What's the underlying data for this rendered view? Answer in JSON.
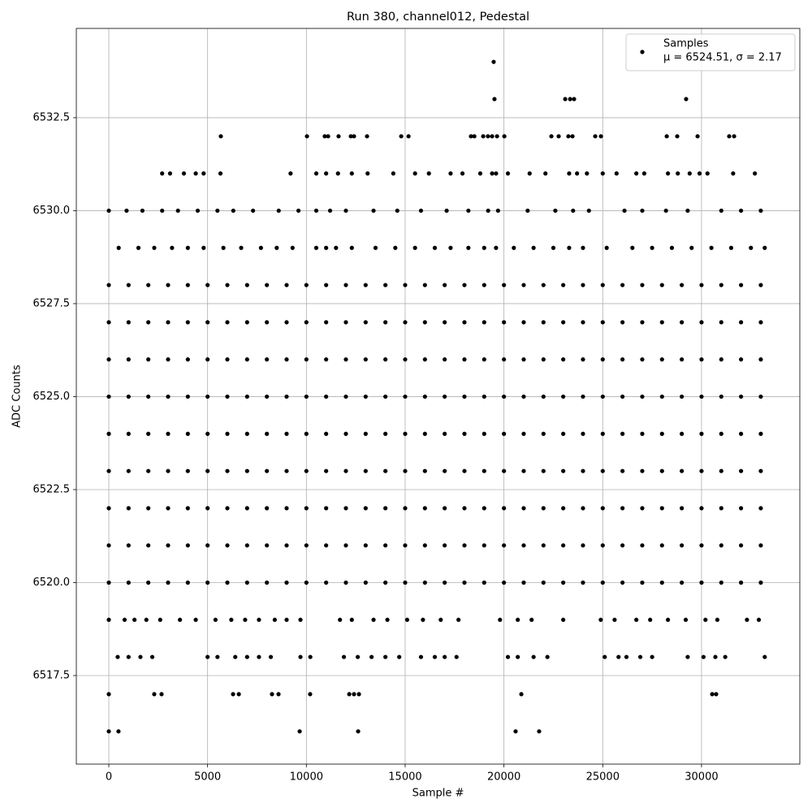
{
  "chart_data": {
    "type": "scatter",
    "title": "Run 380, channel012, Pedestal",
    "x_label": "Sample #",
    "y_label": "ADC Counts",
    "xlim": [
      -1644,
      34975
    ],
    "ylim": [
      6515.12,
      6534.9
    ],
    "xticks": [
      0,
      5000,
      10000,
      15000,
      20000,
      25000,
      30000
    ],
    "yticks": [
      6517.5,
      {
        "value": 6520,
        "label": "6520.0"
      },
      6522.5,
      {
        "value": 6525,
        "label": "6525.0"
      },
      6527.5,
      {
        "value": 6530,
        "label": "6530.0"
      },
      6532.5
    ],
    "grid": true,
    "legend_loc": "upper right",
    "legend_note": "μ = 6524.51, σ = 2.17",
    "series": [
      {
        "name": "Samples",
        "color": "#000000",
        "x": [
          0,
          1000,
          2000,
          3000,
          4000,
          5000,
          6000,
          7000,
          8000,
          9000,
          10000,
          11000,
          12000,
          13000,
          14000,
          15000,
          16000,
          17000,
          18000,
          19000,
          20000,
          21000,
          22000,
          23000,
          24000,
          25000,
          26000,
          27000,
          28000,
          29000,
          30000,
          31000,
          32000,
          33000,
          0,
          1000,
          2000,
          3000,
          4000,
          5000,
          6000,
          7000,
          8000,
          9000,
          10000,
          11000,
          12000,
          13000,
          14000,
          15000,
          16000,
          17000,
          18000,
          19000,
          20000,
          21000,
          22000,
          23000,
          24000,
          25000,
          26000,
          27000,
          28000,
          29000,
          30000,
          31000,
          32000,
          33000,
          0,
          1000,
          2000,
          3000,
          4000,
          5000,
          6000,
          7000,
          8000,
          9000,
          10000,
          11000,
          12000,
          13000,
          14000,
          15000,
          16000,
          17000,
          18000,
          19000,
          20000,
          21000,
          22000,
          23000,
          24000,
          25000,
          26000,
          27000,
          28000,
          29000,
          30000,
          31000,
          32000,
          33000,
          0,
          1000,
          2000,
          3000,
          4000,
          5000,
          6000,
          7000,
          8000,
          9000,
          10000,
          11000,
          12000,
          13000,
          14000,
          15000,
          16000,
          17000,
          18000,
          19000,
          20000,
          21000,
          22000,
          23000,
          24000,
          25000,
          26000,
          27000,
          28000,
          29000,
          30000,
          31000,
          32000,
          33000,
          0,
          1000,
          2000,
          3000,
          4000,
          5000,
          6000,
          7000,
          8000,
          9000,
          10000,
          11000,
          12000,
          13000,
          14000,
          15000,
          16000,
          17000,
          18000,
          19000,
          20000,
          21000,
          22000,
          23000,
          24000,
          25000,
          26000,
          27000,
          28000,
          29000,
          30000,
          31000,
          32000,
          33000,
          0,
          1000,
          2000,
          3000,
          4000,
          5000,
          6000,
          7000,
          8000,
          9000,
          10000,
          11000,
          12000,
          13000,
          14000,
          15000,
          16000,
          17000,
          18000,
          19000,
          20000,
          21000,
          22000,
          23000,
          24000,
          25000,
          26000,
          27000,
          28000,
          29000,
          30000,
          31000,
          32000,
          33000,
          0,
          1000,
          2000,
          3000,
          4000,
          5000,
          6000,
          7000,
          8000,
          9000,
          10000,
          11000,
          12000,
          13000,
          14000,
          15000,
          16000,
          17000,
          18000,
          19000,
          20000,
          21000,
          22000,
          23000,
          24000,
          25000,
          26000,
          27000,
          28000,
          29000,
          30000,
          31000,
          32000,
          33000,
          0,
          1000,
          2000,
          3000,
          4000,
          5000,
          6000,
          7000,
          8000,
          9000,
          10000,
          11000,
          12000,
          13000,
          14000,
          15000,
          16000,
          17000,
          18000,
          19000,
          20000,
          21000,
          22000,
          23000,
          24000,
          25000,
          26000,
          27000,
          28000,
          29000,
          30000,
          31000,
          32000,
          33000,
          0,
          1000,
          2000,
          3000,
          4000,
          5000,
          6000,
          7000,
          8000,
          9000,
          10000,
          11000,
          12000,
          13000,
          14000,
          15000,
          16000,
          17000,
          18000,
          19000,
          20000,
          21000,
          22000,
          23000,
          24000,
          25000,
          26000,
          27000,
          28000,
          29000,
          30000,
          31000,
          32000,
          33000,
          500,
          1500,
          2300,
          3200,
          4000,
          4800,
          5800,
          6700,
          7700,
          8500,
          9300,
          10500,
          11000,
          11500,
          12300,
          13500,
          14500,
          15500,
          16500,
          17300,
          18200,
          19000,
          19600,
          20500,
          21500,
          22500,
          23300,
          24000,
          25200,
          26500,
          27500,
          28500,
          29500,
          30500,
          31500,
          32500,
          33200,
          0,
          900,
          1700,
          2700,
          3500,
          4500,
          5500,
          6300,
          7300,
          8600,
          9600,
          10500,
          11200,
          12000,
          13400,
          14600,
          15800,
          17100,
          18200,
          19200,
          19700,
          21200,
          22600,
          23500,
          24300,
          26100,
          27000,
          28200,
          29300,
          31000,
          32000,
          33000,
          2700,
          3100,
          3800,
          4400,
          4800,
          5650,
          9200,
          10500,
          11000,
          11600,
          12300,
          13100,
          14400,
          15500,
          16200,
          17300,
          17900,
          18800,
          19400,
          19600,
          20200,
          21300,
          22100,
          23300,
          23700,
          24200,
          25000,
          25700,
          26700,
          27100,
          28300,
          28800,
          29400,
          29900,
          30300,
          31600,
          32700,
          450,
          1000,
          1600,
          2200,
          5000,
          5500,
          6400,
          7000,
          7600,
          8200,
          9700,
          10200,
          11900,
          12600,
          13300,
          14000,
          14700,
          15800,
          16500,
          17000,
          17600,
          20200,
          20700,
          21500,
          22200,
          25100,
          25800,
          26200,
          26900,
          27500,
          29300,
          30100,
          30700,
          31200,
          33200,
          0,
          800,
          1300,
          1900,
          2600,
          3600,
          4400,
          5400,
          6200,
          6900,
          7600,
          8400,
          9000,
          9700,
          11700,
          12300,
          13400,
          14100,
          15100,
          15900,
          16800,
          17700,
          19800,
          20700,
          21400,
          23000,
          24900,
          25600,
          26700,
          27400,
          28300,
          29200,
          30200,
          30800,
          32300,
          32900,
          5670,
          10030,
          10930,
          11100,
          11630,
          12250,
          12410,
          13070,
          14800,
          15170,
          18330,
          18500,
          18950,
          19190,
          19400,
          19650,
          20020,
          22400,
          22770,
          23260,
          23470,
          24620,
          24910,
          28240,
          28770,
          29800,
          31400,
          31650,
          19520,
          23100,
          23350,
          23550,
          29220,
          19480,
          0,
          2300,
          2670,
          6290,
          6580,
          8260,
          8590,
          10190,
          12170,
          12410,
          12660,
          20880,
          30540,
          30740,
          0,
          490,
          9660,
          12620,
          20590,
          21780
        ],
        "values": [
          6528,
          6528,
          6528,
          6528,
          6528,
          6528,
          6528,
          6528,
          6528,
          6528,
          6528,
          6528,
          6528,
          6528,
          6528,
          6528,
          6528,
          6528,
          6528,
          6528,
          6528,
          6528,
          6528,
          6528,
          6528,
          6528,
          6528,
          6528,
          6528,
          6528,
          6528,
          6528,
          6528,
          6528,
          6527,
          6527,
          6527,
          6527,
          6527,
          6527,
          6527,
          6527,
          6527,
          6527,
          6527,
          6527,
          6527,
          6527,
          6527,
          6527,
          6527,
          6527,
          6527,
          6527,
          6527,
          6527,
          6527,
          6527,
          6527,
          6527,
          6527,
          6527,
          6527,
          6527,
          6527,
          6527,
          6527,
          6527,
          6526,
          6526,
          6526,
          6526,
          6526,
          6526,
          6526,
          6526,
          6526,
          6526,
          6526,
          6526,
          6526,
          6526,
          6526,
          6526,
          6526,
          6526,
          6526,
          6526,
          6526,
          6526,
          6526,
          6526,
          6526,
          6526,
          6526,
          6526,
          6526,
          6526,
          6526,
          6526,
          6526,
          6526,
          6525,
          6525,
          6525,
          6525,
          6525,
          6525,
          6525,
          6525,
          6525,
          6525,
          6525,
          6525,
          6525,
          6525,
          6525,
          6525,
          6525,
          6525,
          6525,
          6525,
          6525,
          6525,
          6525,
          6525,
          6525,
          6525,
          6525,
          6525,
          6525,
          6525,
          6525,
          6525,
          6525,
          6525,
          6524,
          6524,
          6524,
          6524,
          6524,
          6524,
          6524,
          6524,
          6524,
          6524,
          6524,
          6524,
          6524,
          6524,
          6524,
          6524,
          6524,
          6524,
          6524,
          6524,
          6524,
          6524,
          6524,
          6524,
          6524,
          6524,
          6524,
          6524,
          6524,
          6524,
          6524,
          6524,
          6524,
          6524,
          6523,
          6523,
          6523,
          6523,
          6523,
          6523,
          6523,
          6523,
          6523,
          6523,
          6523,
          6523,
          6523,
          6523,
          6523,
          6523,
          6523,
          6523,
          6523,
          6523,
          6523,
          6523,
          6523,
          6523,
          6523,
          6523,
          6523,
          6523,
          6523,
          6523,
          6523,
          6523,
          6523,
          6523,
          6522,
          6522,
          6522,
          6522,
          6522,
          6522,
          6522,
          6522,
          6522,
          6522,
          6522,
          6522,
          6522,
          6522,
          6522,
          6522,
          6522,
          6522,
          6522,
          6522,
          6522,
          6522,
          6522,
          6522,
          6522,
          6522,
          6522,
          6522,
          6522,
          6522,
          6522,
          6522,
          6522,
          6522,
          6521,
          6521,
          6521,
          6521,
          6521,
          6521,
          6521,
          6521,
          6521,
          6521,
          6521,
          6521,
          6521,
          6521,
          6521,
          6521,
          6521,
          6521,
          6521,
          6521,
          6521,
          6521,
          6521,
          6521,
          6521,
          6521,
          6521,
          6521,
          6521,
          6521,
          6521,
          6521,
          6521,
          6521,
          6520,
          6520,
          6520,
          6520,
          6520,
          6520,
          6520,
          6520,
          6520,
          6520,
          6520,
          6520,
          6520,
          6520,
          6520,
          6520,
          6520,
          6520,
          6520,
          6520,
          6520,
          6520,
          6520,
          6520,
          6520,
          6520,
          6520,
          6520,
          6520,
          6520,
          6520,
          6520,
          6520,
          6520,
          6529,
          6529,
          6529,
          6529,
          6529,
          6529,
          6529,
          6529,
          6529,
          6529,
          6529,
          6529,
          6529,
          6529,
          6529,
          6529,
          6529,
          6529,
          6529,
          6529,
          6529,
          6529,
          6529,
          6529,
          6529,
          6529,
          6529,
          6529,
          6529,
          6529,
          6529,
          6529,
          6529,
          6529,
          6529,
          6529,
          6529,
          6530,
          6530,
          6530,
          6530,
          6530,
          6530,
          6530,
          6530,
          6530,
          6530,
          6530,
          6530,
          6530,
          6530,
          6530,
          6530,
          6530,
          6530,
          6530,
          6530,
          6530,
          6530,
          6530,
          6530,
          6530,
          6530,
          6530,
          6530,
          6530,
          6530,
          6530,
          6530,
          6531,
          6531,
          6531,
          6531,
          6531,
          6531,
          6531,
          6531,
          6531,
          6531,
          6531,
          6531,
          6531,
          6531,
          6531,
          6531,
          6531,
          6531,
          6531,
          6531,
          6531,
          6531,
          6531,
          6531,
          6531,
          6531,
          6531,
          6531,
          6531,
          6531,
          6531,
          6531,
          6531,
          6531,
          6531,
          6531,
          6531,
          6518,
          6518,
          6518,
          6518,
          6518,
          6518,
          6518,
          6518,
          6518,
          6518,
          6518,
          6518,
          6518,
          6518,
          6518,
          6518,
          6518,
          6518,
          6518,
          6518,
          6518,
          6518,
          6518,
          6518,
          6518,
          6518,
          6518,
          6518,
          6518,
          6518,
          6518,
          6518,
          6518,
          6518,
          6518,
          6519,
          6519,
          6519,
          6519,
          6519,
          6519,
          6519,
          6519,
          6519,
          6519,
          6519,
          6519,
          6519,
          6519,
          6519,
          6519,
          6519,
          6519,
          6519,
          6519,
          6519,
          6519,
          6519,
          6519,
          6519,
          6519,
          6519,
          6519,
          6519,
          6519,
          6519,
          6519,
          6519,
          6519,
          6519,
          6519,
          6532,
          6532,
          6532,
          6532,
          6532,
          6532,
          6532,
          6532,
          6532,
          6532,
          6532,
          6532,
          6532,
          6532,
          6532,
          6532,
          6532,
          6532,
          6532,
          6532,
          6532,
          6532,
          6532,
          6532,
          6532,
          6532,
          6532,
          6532,
          6533,
          6533,
          6533,
          6533,
          6533,
          6534,
          6517,
          6517,
          6517,
          6517,
          6517,
          6517,
          6517,
          6517,
          6517,
          6517,
          6517,
          6517,
          6517,
          6517,
          6516,
          6516,
          6516,
          6516,
          6516,
          6516
        ]
      }
    ]
  }
}
